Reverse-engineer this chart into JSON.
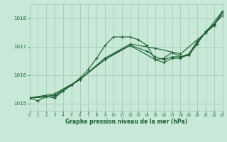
{
  "xlabel": "Graphe pression niveau de la mer (hPa)",
  "xlim": [
    0,
    23
  ],
  "ylim": [
    1014.75,
    1018.5
  ],
  "yticks": [
    1015,
    1016,
    1017,
    1018
  ],
  "xticks": [
    0,
    1,
    2,
    3,
    4,
    5,
    6,
    7,
    8,
    9,
    10,
    11,
    12,
    13,
    14,
    15,
    16,
    17,
    18,
    19,
    20,
    21,
    22,
    23
  ],
  "bg_color": "#c8e8d8",
  "grid_color": "#a0c8b0",
  "line_color": "#1a5e30",
  "lines": [
    {
      "x": [
        0,
        1,
        2,
        3,
        4,
        5,
        6,
        7,
        8,
        9,
        10,
        11,
        12,
        13,
        14,
        15,
        16,
        17,
        18,
        19,
        20,
        21,
        22,
        23
      ],
      "y": [
        1015.2,
        1015.1,
        1015.25,
        1015.2,
        1015.45,
        1015.65,
        1015.9,
        1016.2,
        1016.6,
        1017.05,
        1017.35,
        1017.35,
        1017.35,
        1017.25,
        1017.05,
        1016.55,
        1016.6,
        1016.8,
        1016.65,
        1016.7,
        1017.1,
        1017.55,
        1017.8,
        1018.1
      ]
    },
    {
      "x": [
        0,
        3,
        6,
        9,
        12,
        15,
        18,
        21,
        23
      ],
      "y": [
        1015.2,
        1015.35,
        1015.85,
        1016.6,
        1017.1,
        1016.95,
        1016.75,
        1017.5,
        1018.25
      ]
    },
    {
      "x": [
        0,
        3,
        6,
        9,
        12,
        14,
        15,
        16,
        17,
        18,
        19,
        20,
        21,
        22,
        23
      ],
      "y": [
        1015.2,
        1015.3,
        1015.85,
        1016.6,
        1017.05,
        1016.85,
        1016.65,
        1016.55,
        1016.65,
        1016.65,
        1016.75,
        1017.2,
        1017.5,
        1017.78,
        1018.25
      ]
    },
    {
      "x": [
        0,
        3,
        6,
        9,
        12,
        15,
        16,
        17,
        18,
        19,
        20,
        21,
        22,
        23
      ],
      "y": [
        1015.2,
        1015.25,
        1015.85,
        1016.55,
        1017.05,
        1016.55,
        1016.45,
        1016.6,
        1016.6,
        1016.75,
        1017.15,
        1017.5,
        1017.75,
        1018.2
      ]
    }
  ]
}
